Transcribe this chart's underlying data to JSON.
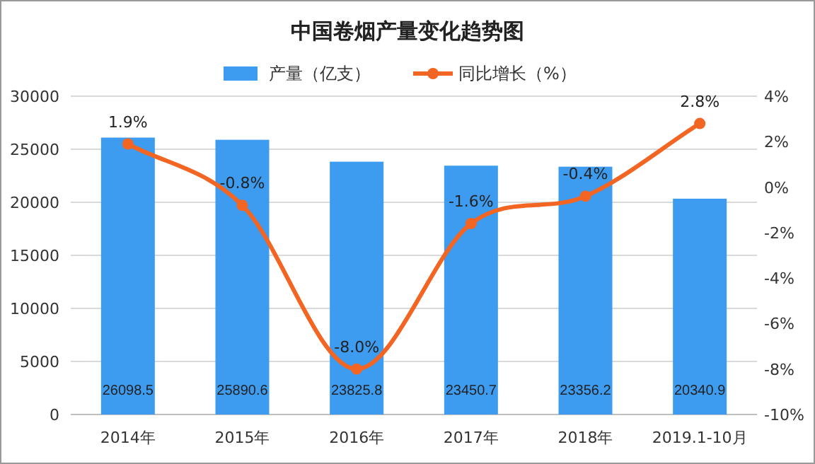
{
  "chart_data": {
    "type": "bar",
    "title": "中国卷烟产量变化趋势图",
    "categories": [
      "2014年",
      "2015年",
      "2016年",
      "2017年",
      "2018年",
      "2019.1-10月"
    ],
    "series": [
      {
        "name": "产量（亿支）",
        "color": "#3d9cf0",
        "values": [
          26098.5,
          25890.6,
          23825.8,
          23450.7,
          23356.2,
          20340.9
        ],
        "value_labels": [
          "26098.5",
          "25890.6",
          "23825.8",
          "23450.7",
          "23356.2",
          "20340.9"
        ]
      },
      {
        "name": "同比增长（%）",
        "type": "line",
        "axis": "y2",
        "color": "#f26522",
        "marker": "circle",
        "values": [
          1.9,
          -0.8,
          -8.0,
          -1.6,
          -0.4,
          2.8
        ],
        "value_labels": [
          "1.9%",
          "-0.8%",
          "-8.0%",
          "-1.6%",
          "-0.4%",
          "2.8%"
        ]
      }
    ],
    "ylim": [
      0,
      30000
    ],
    "yticks": [
      0,
      5000,
      10000,
      15000,
      20000,
      25000,
      30000
    ],
    "y2lim": [
      -10,
      4
    ],
    "y2ticks": [
      {
        "value": -10,
        "label": "-10%"
      },
      {
        "value": -8,
        "label": "-8%"
      },
      {
        "value": -6,
        "label": "-6%"
      },
      {
        "value": -4,
        "label": "-4%"
      },
      {
        "value": -2,
        "label": "-2%"
      },
      {
        "value": 0,
        "label": "0%"
      },
      {
        "value": 2,
        "label": "2%"
      },
      {
        "value": 4,
        "label": "4%"
      }
    ],
    "grid": "y",
    "legend": "top"
  }
}
